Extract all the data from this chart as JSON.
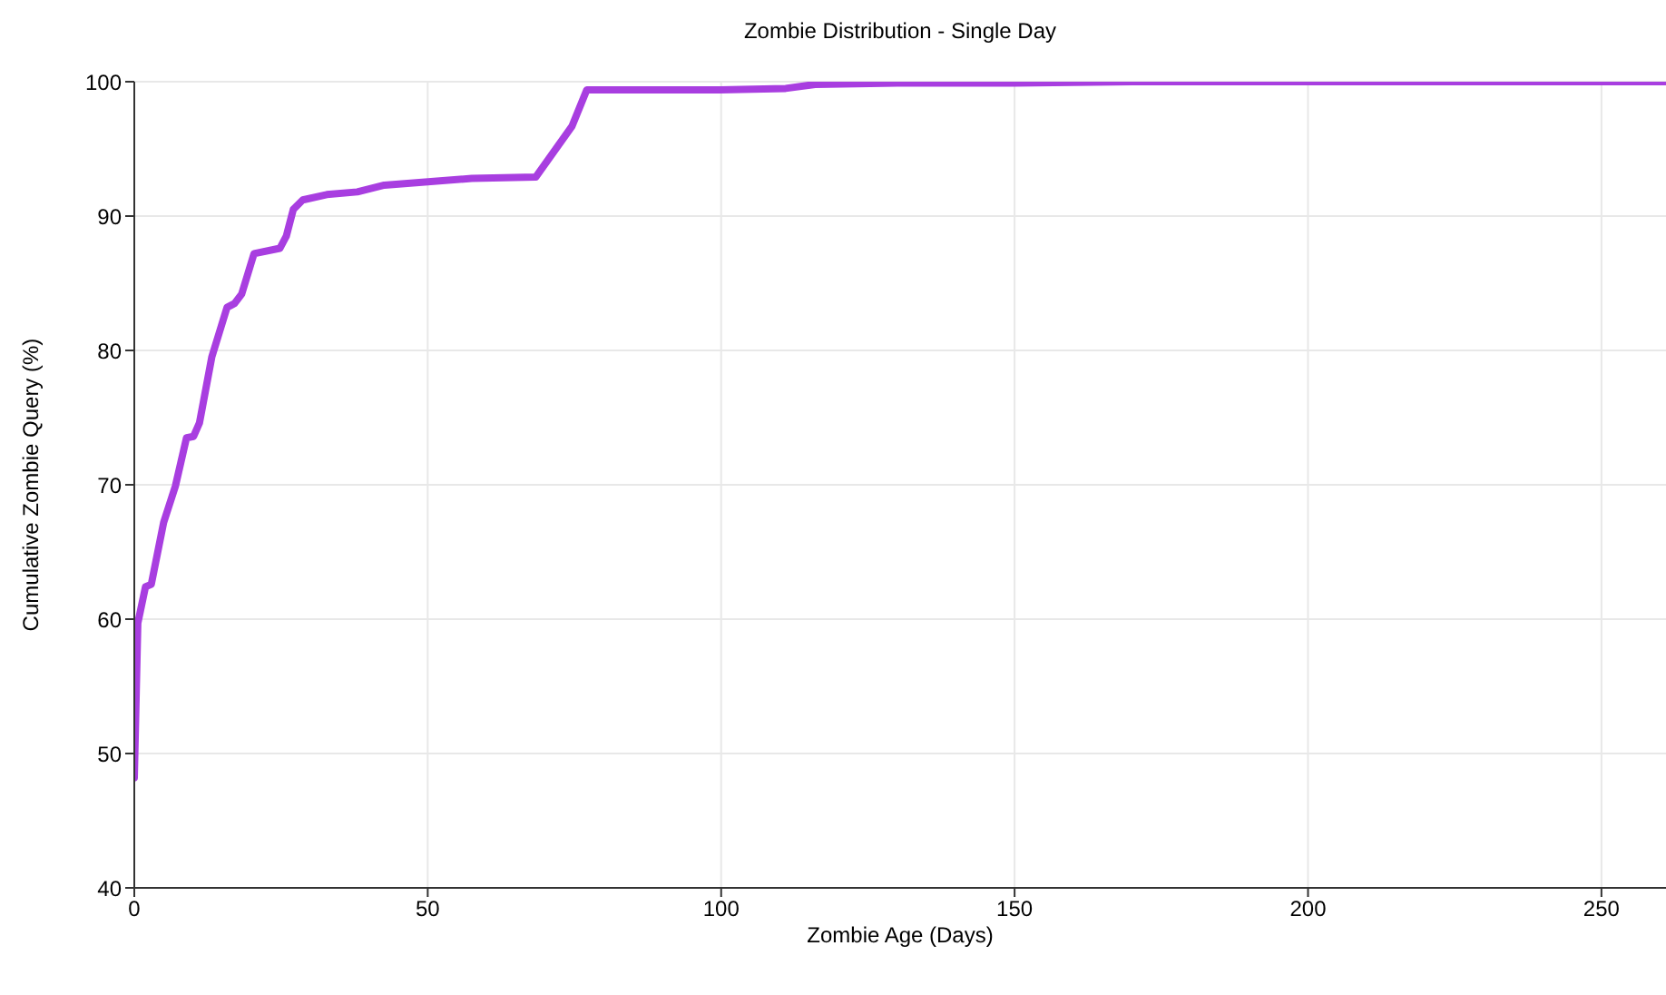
{
  "chart_data": {
    "type": "line",
    "title": "Zombie Distribution - Single Day",
    "xlabel": "Zombie Age (Days)",
    "ylabel": "Cumulative Zombie Query (%)",
    "x": [
      0,
      0.6,
      1.9,
      2.9,
      5,
      7,
      8.9,
      10.1,
      11.1,
      13.2,
      15.8,
      17.1,
      18.3,
      20.4,
      24.8,
      25.9,
      27.1,
      28.7,
      32.8,
      38,
      42.6,
      57.5,
      68.4,
      74.6,
      77.1,
      99.8,
      111,
      116,
      130,
      150,
      170,
      220,
      261
    ],
    "series": [
      {
        "color": "#a83ee0",
        "values": [
          48.2,
          59.7,
          62.4,
          62.6,
          67.2,
          69.9,
          73.5,
          73.6,
          74.6,
          79.5,
          83.2,
          83.5,
          84.2,
          87.2,
          87.6,
          88.5,
          90.5,
          91.2,
          91.6,
          91.8,
          92.3,
          92.8,
          92.9,
          96.7,
          99.4,
          99.4,
          99.5,
          99.8,
          99.9,
          99.9,
          100,
          100,
          100
        ]
      }
    ],
    "xlim": [
      0,
      261
    ],
    "xticks": [
      0,
      50,
      100,
      150,
      200,
      250
    ],
    "ylim": [
      40,
      100
    ],
    "yticks": [
      40,
      50,
      60,
      70,
      80,
      90,
      100
    ],
    "grid": true,
    "legend": false,
    "marker": "none",
    "line_style": "solid"
  }
}
